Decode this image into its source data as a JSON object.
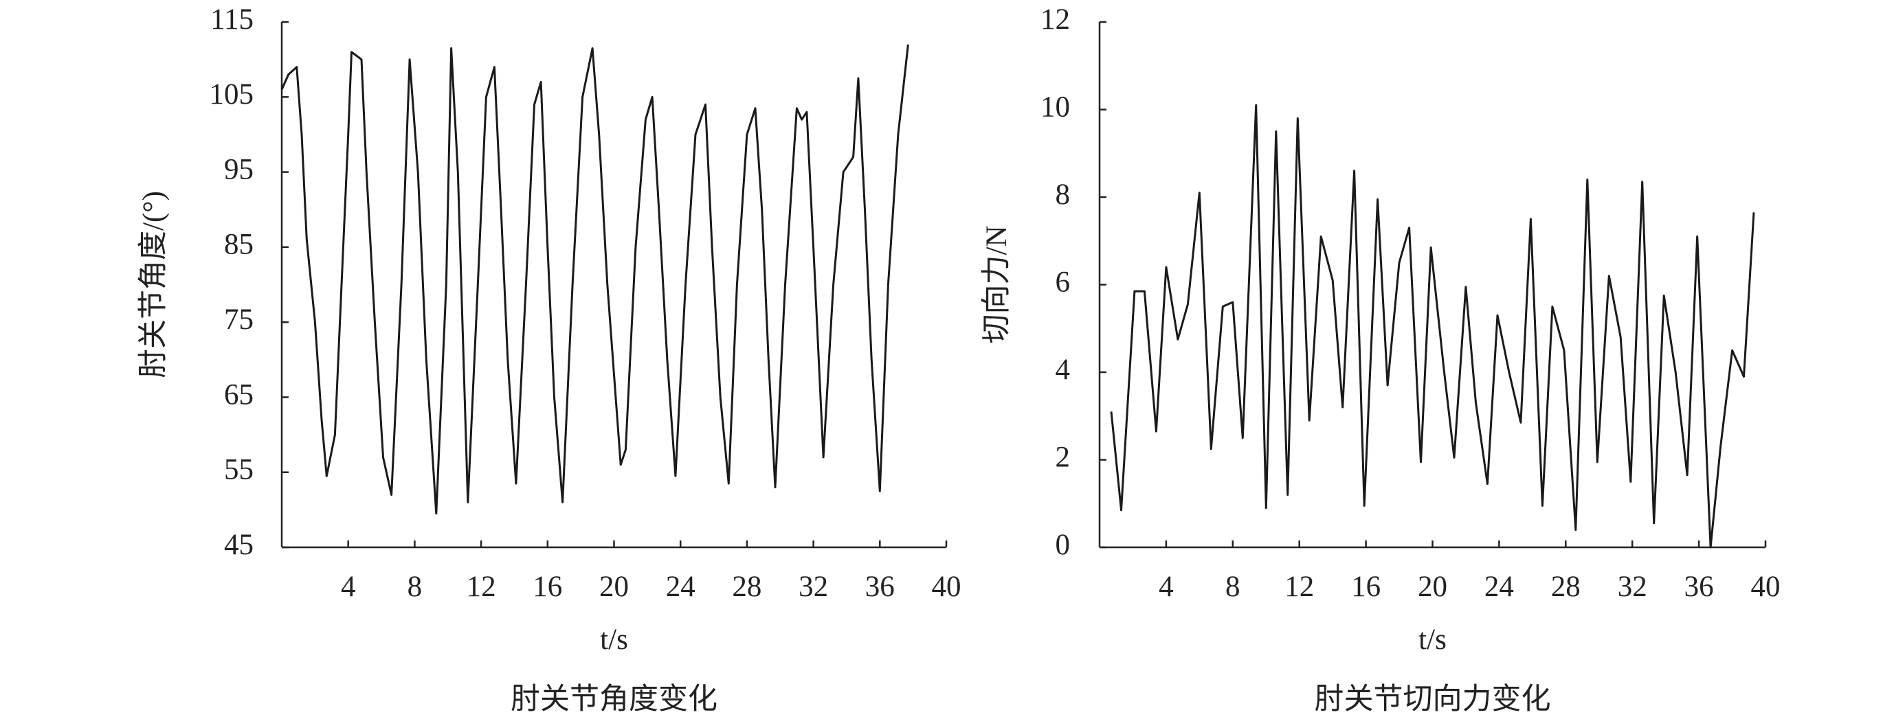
{
  "chart_data": [
    {
      "type": "line",
      "title": "肘关节角度变化",
      "x_label": "t/s",
      "y_label": "肘关节角度/(°)",
      "xlim": [
        0,
        40
      ],
      "xticks": [
        4,
        8,
        12,
        16,
        20,
        24,
        28,
        32,
        36,
        40
      ],
      "ylim": [
        45,
        115
      ],
      "yticks": [
        45,
        55,
        65,
        75,
        85,
        95,
        105,
        115
      ],
      "x": [
        0,
        0.4,
        0.9,
        1.2,
        1.5,
        2,
        2.4,
        2.7,
        3.2,
        3.6,
        4,
        4.2,
        4.8,
        5.1,
        5.6,
        6.1,
        6.6,
        7.2,
        7.7,
        8.2,
        8.7,
        9.3,
        9.9,
        10.2,
        10.6,
        11.2,
        11.8,
        12.3,
        12.8,
        13.2,
        13.6,
        14.1,
        14.7,
        15.2,
        15.6,
        16,
        16.4,
        16.9,
        17.5,
        18.1,
        18.7,
        19.1,
        19.6,
        20.4,
        20.7,
        21.3,
        21.9,
        22.3,
        22.7,
        23.2,
        23.7,
        24.3,
        24.9,
        25.5,
        25.9,
        26.4,
        26.9,
        27.4,
        28,
        28.5,
        28.9,
        29.3,
        29.7,
        30.3,
        31,
        31.3,
        31.6,
        32,
        32.6,
        33.2,
        33.8,
        34.4,
        34.7,
        35.1,
        35.5,
        36,
        36.5,
        37.1,
        37.7
      ],
      "series": [
        {
          "color": "#1a1a1a",
          "values": [
            106,
            108,
            109,
            100,
            86,
            75,
            62,
            54.5,
            60,
            80,
            100,
            111,
            110,
            95,
            75,
            57,
            52,
            80,
            110,
            95,
            70,
            49.5,
            80,
            111.5,
            95,
            51,
            80,
            105,
            109,
            90,
            70,
            53.5,
            80,
            104,
            107,
            85,
            65,
            51,
            80,
            105,
            111.5,
            100,
            80,
            56,
            58,
            85,
            102,
            105,
            90,
            70,
            54.5,
            80,
            100,
            104,
            85,
            65,
            53.5,
            80,
            100,
            103.5,
            90,
            70,
            53,
            80,
            103.5,
            102,
            103,
            85,
            57,
            80,
            95,
            97,
            107.5,
            90,
            70,
            52.5,
            80,
            100,
            112
          ]
        }
      ]
    },
    {
      "type": "line",
      "title": "肘关节切向力变化",
      "x_label": "t/s",
      "y_label": "切向力/N",
      "xlim": [
        0,
        40
      ],
      "xticks": [
        4,
        8,
        12,
        16,
        20,
        24,
        28,
        32,
        36,
        40
      ],
      "ylim": [
        0,
        12
      ],
      "yticks": [
        0,
        2,
        4,
        6,
        8,
        10,
        12
      ],
      "x": [
        0.7,
        1.3,
        2.1,
        2.7,
        3.4,
        4.0,
        4.7,
        5.3,
        6.0,
        6.7,
        7.4,
        8.0,
        8.6,
        9.4,
        10.0,
        10.6,
        11.3,
        11.9,
        12.6,
        13.3,
        14.0,
        14.6,
        15.3,
        15.9,
        16.7,
        17.3,
        18.0,
        18.6,
        19.3,
        19.9,
        20.7,
        21.3,
        22.0,
        22.6,
        23.3,
        23.9,
        24.6,
        25.3,
        25.9,
        26.6,
        27.2,
        27.9,
        28.6,
        29.3,
        29.9,
        30.6,
        31.3,
        31.9,
        32.6,
        33.3,
        33.9,
        34.6,
        35.3,
        35.9,
        36.7,
        37.3,
        38.0,
        38.7,
        39.3
      ],
      "series": [
        {
          "color": "#1a1a1a",
          "values": [
            3.1,
            0.85,
            5.85,
            5.85,
            2.65,
            6.4,
            4.75,
            5.55,
            8.1,
            2.25,
            5.5,
            5.6,
            2.5,
            10.1,
            0.9,
            9.5,
            1.2,
            9.8,
            2.9,
            7.1,
            6.1,
            3.2,
            8.6,
            0.95,
            7.95,
            3.7,
            6.5,
            7.3,
            1.95,
            6.85,
            4.0,
            2.05,
            5.95,
            3.3,
            1.45,
            5.3,
            4.0,
            2.85,
            7.5,
            0.95,
            5.5,
            4.5,
            0.4,
            8.4,
            1.95,
            6.2,
            4.8,
            1.5,
            8.35,
            0.55,
            5.75,
            4.0,
            1.65,
            7.1,
            0,
            2.3,
            4.5,
            3.9,
            7.65
          ]
        }
      ]
    }
  ]
}
